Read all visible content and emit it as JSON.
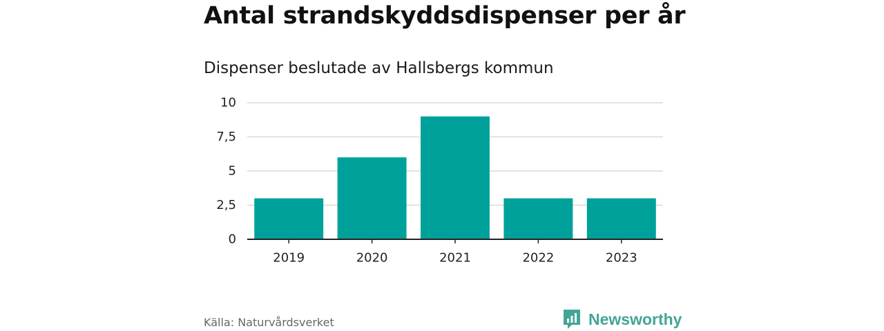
{
  "chart_data": {
    "type": "bar",
    "title": "Antal strandskyddsdispenser per år",
    "subtitle": "Dispenser beslutade av Hallsbergs kommun",
    "categories": [
      "2019",
      "2020",
      "2021",
      "2022",
      "2023"
    ],
    "values": [
      3,
      6,
      9,
      3,
      3
    ],
    "xlabel": "",
    "ylabel": "",
    "ylim": [
      0,
      10
    ],
    "yticks": [
      0,
      2.5,
      5,
      7.5,
      10
    ],
    "ytick_labels": [
      "0",
      "2,5",
      "5",
      "7,5",
      "10"
    ],
    "grid": true,
    "bar_color": "#00a19a"
  },
  "footer": {
    "source": "Källa: Naturvårdsverket",
    "brand": "Newsworthy",
    "brand_color": "#43a595"
  }
}
